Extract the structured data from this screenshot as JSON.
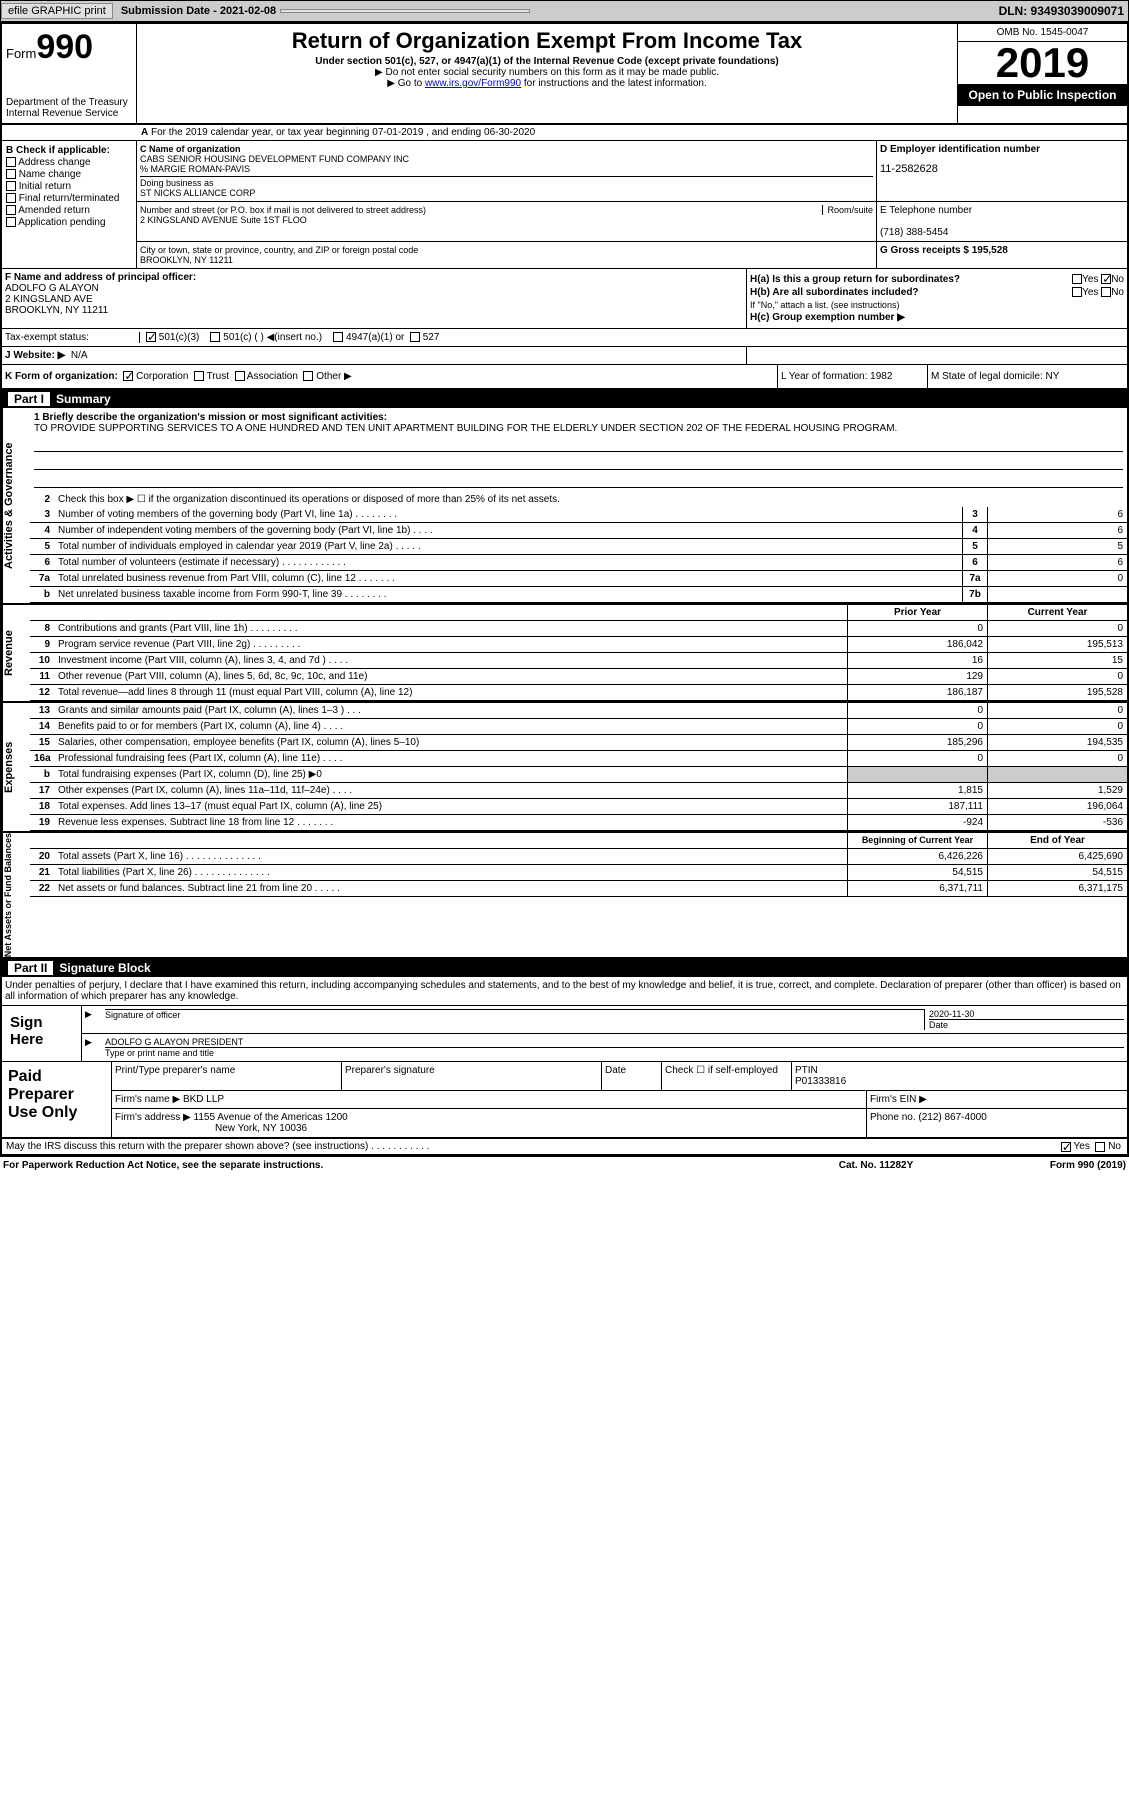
{
  "topbar": {
    "efile": "efile GRAPHIC print",
    "sub_label": "Submission Date - 2021-02-08",
    "dln": "DLN: 93493039009071"
  },
  "header": {
    "form_prefix": "Form",
    "form_num": "990",
    "dept": "Department of the Treasury\nInternal Revenue Service",
    "title": "Return of Organization Exempt From Income Tax",
    "sub1": "Under section 501(c), 527, or 4947(a)(1) of the Internal Revenue Code (except private foundations)",
    "sub2": "Do not enter social security numbers on this form as it may be made public.",
    "sub3_pre": "Go to ",
    "sub3_link": "www.irs.gov/Form990",
    "sub3_post": " for instructions and the latest information.",
    "omb": "OMB No. 1545-0047",
    "year": "2019",
    "open": "Open to Public Inspection"
  },
  "line_a": "For the 2019 calendar year, or tax year beginning 07-01-2019    , and ending 06-30-2020",
  "sec_b": {
    "label": "B Check if applicable:",
    "opts": [
      "Address change",
      "Name change",
      "Initial return",
      "Final return/terminated",
      "Amended return",
      "Application pending"
    ]
  },
  "sec_c": {
    "name_label": "C Name of organization",
    "name": "CABS SENIOR HOUSING DEVELOPMENT FUND COMPANY INC",
    "care_of": "% MARGIE ROMAN-PAVIS",
    "dba_label": "Doing business as",
    "dba": "ST NICKS ALLIANCE CORP",
    "addr_label": "Number and street (or P.O. box if mail is not delivered to street address)",
    "room_label": "Room/suite",
    "addr": "2 KINGSLAND AVENUE Suite 1ST FLOO",
    "city_label": "City or town, state or province, country, and ZIP or foreign postal code",
    "city": "BROOKLYN, NY  11211"
  },
  "sec_d": {
    "label": "D Employer identification number",
    "ein": "11-2582628"
  },
  "sec_e": {
    "label": "E Telephone number",
    "phone": "(718) 388-5454"
  },
  "sec_g": {
    "label": "G Gross receipts $ 195,528"
  },
  "sec_f": {
    "label": "F  Name and address of principal officer:",
    "name": "ADOLFO G ALAYON",
    "addr": "2 KINGSLAND AVE",
    "city": "BROOKLYN, NY  11211"
  },
  "sec_h": {
    "ha": "H(a)  Is this a group return for subordinates?",
    "hb": "H(b)  Are all subordinates included?",
    "hb_note": "If \"No,\" attach a list. (see instructions)",
    "hc": "H(c)  Group exemption number ▶",
    "yes": "Yes",
    "no": "No"
  },
  "sec_i": {
    "label": "Tax-exempt status:",
    "o1": "501(c)(3)",
    "o2": "501(c) (  ) ◀(insert no.)",
    "o3": "4947(a)(1) or",
    "o4": "527"
  },
  "sec_j": {
    "label": "J   Website: ▶",
    "val": "N/A"
  },
  "sec_k": {
    "label": "K Form of organization:",
    "o1": "Corporation",
    "o2": "Trust",
    "o3": "Association",
    "o4": "Other ▶"
  },
  "sec_l": {
    "label": "L Year of formation: 1982"
  },
  "sec_m": {
    "label": "M State of legal domicile: NY"
  },
  "part1": {
    "title": "Summary",
    "q1_label": "1  Briefly describe the organization's mission or most significant activities:",
    "q1_text": "TO PROVIDE SUPPORTING SERVICES TO A ONE HUNDRED AND TEN UNIT APARTMENT BUILDING FOR THE ELDERLY UNDER SECTION 202 OF THE FEDERAL HOUSING PROGRAM.",
    "q2": "Check this box ▶ ☐  if the organization discontinued its operations or disposed of more than 25% of its net assets.",
    "rows_act": [
      {
        "n": "3",
        "t": "Number of voting members of the governing body (Part VI, line 1a)  .    .    .    .    .    .    .    .",
        "b": "3",
        "v": "6"
      },
      {
        "n": "4",
        "t": "Number of independent voting members of the governing body (Part VI, line 1b)  .    .    .    .",
        "b": "4",
        "v": "6"
      },
      {
        "n": "5",
        "t": "Total number of individuals employed in calendar year 2019 (Part V, line 2a)  .    .    .    .    .",
        "b": "5",
        "v": "5"
      },
      {
        "n": "6",
        "t": "Total number of volunteers (estimate if necessary)    .    .    .    .    .    .    .    .    .    .    .    .",
        "b": "6",
        "v": "6"
      },
      {
        "n": "7a",
        "t": "Total unrelated business revenue from Part VIII, column (C), line 12  .    .    .    .    .    .    .",
        "b": "7a",
        "v": "0"
      },
      {
        "n": "b",
        "t": "Net unrelated business taxable income from Form 990-T, line 39  .    .    .    .    .    .    .    .",
        "b": "7b",
        "v": ""
      }
    ],
    "prior_hdr": "Prior Year",
    "curr_hdr": "Current Year",
    "rev_rows": [
      {
        "n": "8",
        "t": "Contributions and grants (Part VIII, line 1h)   .    .    .    .    .    .    .    .    .",
        "p": "0",
        "c": "0"
      },
      {
        "n": "9",
        "t": "Program service revenue (Part VIII, line 2g)   .    .    .    .    .    .    .    .    .",
        "p": "186,042",
        "c": "195,513"
      },
      {
        "n": "10",
        "t": "Investment income (Part VIII, column (A), lines 3, 4, and 7d )   .    .    .    .",
        "p": "16",
        "c": "15"
      },
      {
        "n": "11",
        "t": "Other revenue (Part VIII, column (A), lines 5, 6d, 8c, 9c, 10c, and 11e)",
        "p": "129",
        "c": "0"
      },
      {
        "n": "12",
        "t": "Total revenue—add lines 8 through 11 (must equal Part VIII, column (A), line 12)",
        "p": "186,187",
        "c": "195,528"
      }
    ],
    "exp_rows": [
      {
        "n": "13",
        "t": "Grants and similar amounts paid (Part IX, column (A), lines 1–3 )  .    .    .",
        "p": "0",
        "c": "0"
      },
      {
        "n": "14",
        "t": "Benefits paid to or for members (Part IX, column (A), line 4)   .    .    .    .",
        "p": "0",
        "c": "0"
      },
      {
        "n": "15",
        "t": "Salaries, other compensation, employee benefits (Part IX, column (A), lines 5–10)",
        "p": "185,296",
        "c": "194,535"
      },
      {
        "n": "16a",
        "t": "Professional fundraising fees (Part IX, column (A), line 11e)   .    .    .    .",
        "p": "0",
        "c": "0"
      },
      {
        "n": "b",
        "t": "Total fundraising expenses (Part IX, column (D), line 25) ▶0",
        "p": "gray",
        "c": "gray"
      },
      {
        "n": "17",
        "t": "Other expenses (Part IX, column (A), lines 11a–11d, 11f–24e)   .    .    .    .",
        "p": "1,815",
        "c": "1,529"
      },
      {
        "n": "18",
        "t": "Total expenses. Add lines 13–17 (must equal Part IX, column (A), line 25)",
        "p": "187,111",
        "c": "196,064"
      },
      {
        "n": "19",
        "t": "Revenue less expenses. Subtract line 18 from line 12 .    .    .    .    .    .    .",
        "p": "-924",
        "c": "-536"
      }
    ],
    "beg_hdr": "Beginning of Current Year",
    "end_hdr": "End of Year",
    "net_rows": [
      {
        "n": "20",
        "t": "Total assets (Part X, line 16)  .    .    .    .    .    .    .    .    .    .    .    .    .    .",
        "p": "6,426,226",
        "c": "6,425,690"
      },
      {
        "n": "21",
        "t": "Total liabilities (Part X, line 26) .    .    .    .    .    .    .    .    .    .    .    .    .    .",
        "p": "54,515",
        "c": "54,515"
      },
      {
        "n": "22",
        "t": "Net assets or fund balances. Subtract line 21 from line 20   .    .    .    .    .",
        "p": "6,371,711",
        "c": "6,371,175"
      }
    ],
    "vlabels": {
      "act": "Activities & Governance",
      "rev": "Revenue",
      "exp": "Expenses",
      "net": "Net Assets or Fund Balances"
    }
  },
  "part2": {
    "title": "Signature Block",
    "decl": "Under penalties of perjury, I declare that I have examined this return, including accompanying schedules and statements, and to the best of my knowledge and belief, it is true, correct, and complete. Declaration of preparer (other than officer) is based on all information of which preparer has any knowledge.",
    "sign_here": "Sign Here",
    "sig_officer": "Signature of officer",
    "date": "2020-11-30",
    "date_label": "Date",
    "name": "ADOLFO G ALAYON  PRESIDENT",
    "name_label": "Type or print name and title",
    "paid": "Paid Preparer Use Only",
    "pt_name": "Print/Type preparer's name",
    "pt_sig": "Preparer's signature",
    "pt_date": "Date",
    "check_if": "Check ☐ if self-employed",
    "ptin_label": "PTIN",
    "ptin": "P01333816",
    "firm_name_label": "Firm's name    ▶",
    "firm_name": "BKD LLP",
    "firm_ein_label": "Firm's EIN ▶",
    "firm_addr_label": "Firm's address ▶",
    "firm_addr": "1155 Avenue of the Americas 1200",
    "firm_city": "New York, NY  10036",
    "phone_label": "Phone no. (212) 867-4000",
    "may_irs": "May the IRS discuss this return with the preparer shown above? (see instructions)   .    .    .    .    .    .    .    .    .    .    .",
    "yes": "Yes",
    "no": "No"
  },
  "footer": {
    "left": "For Paperwork Reduction Act Notice, see the separate instructions.",
    "mid": "Cat. No. 11282Y",
    "right": "Form 990 (2019)"
  }
}
